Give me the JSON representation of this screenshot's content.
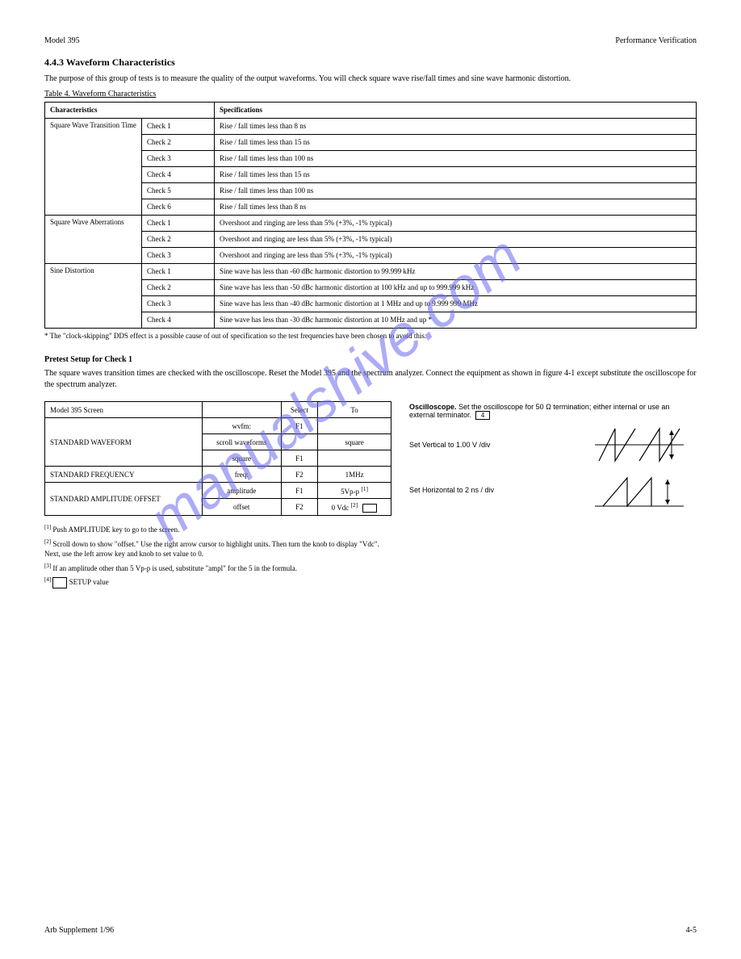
{
  "header": {
    "left": "Model 395",
    "right": "Performance Verification"
  },
  "section_title": "4.4.3 Waveform Characteristics",
  "intro_text": "The purpose of this group of tests is to measure the quality of the output waveforms. You will check square wave rise/fall times and sine wave harmonic distortion.",
  "table1": {
    "caption": "Table 4. Waveform Characteristics",
    "header": [
      "Characteristics",
      "",
      "Specifications"
    ],
    "groups": [
      {
        "label": "Square Wave Transition Time",
        "rows": [
          [
            "Check 1",
            "Rise / fall times less than 8 ns"
          ],
          [
            "Check 2",
            "Rise / fall times less than 15 ns"
          ],
          [
            "Check 3",
            "Rise / fall times less than 100 ns"
          ],
          [
            "Check 4",
            "Rise / fall times less than 15 ns"
          ],
          [
            "Check 5",
            "Rise / fall times less than 100 ns"
          ],
          [
            "Check 6",
            "Rise / fall times less than 8 ns"
          ]
        ]
      },
      {
        "label": "Square Wave Aberrations",
        "rows": [
          [
            "Check 1",
            "Overshoot and ringing are less than 5% (+3%, -1% typical)"
          ],
          [
            "Check 2",
            "Overshoot and ringing are less than 5% (+3%, -1% typical)"
          ],
          [
            "Check 3",
            "Overshoot and ringing are less than 5% (+3%, -1% typical)"
          ]
        ]
      },
      {
        "label": "Sine Distortion",
        "rows": [
          [
            "Check 1",
            "Sine wave has less than -60 dBc harmonic distortion to 99.999 kHz"
          ],
          [
            "Check 2",
            "Sine wave has less than -50 dBc harmonic distortion at 100 kHz and up to 999.999 kHz"
          ],
          [
            "Check 3",
            "Sine wave has less than -40 dBc harmonic distortion at 1 MHz and up to 9.999 999 MHz"
          ],
          [
            "Check 4",
            "Sine wave has less than -30 dBc harmonic distortion at 10 MHz and up *"
          ]
        ]
      }
    ],
    "footnote": "* The \"clock-skipping\" DDS effect is a possible cause of out of specification so the test frequencies have been chosen to avoid this."
  },
  "pretest_heading": "Pretest Setup for Check 1",
  "pretest_text": "The square waves transition times are checked with the oscilloscope. Reset the Model 395 and the spectrum analyzer. Connect the equipment as shown in figure 4-1 except substitute the oscilloscope for the spectrum analyzer.",
  "osc_heading": "Oscilloscope.",
  "osc_rows": [
    {
      "label": "Set Vertical to 1.00 V /div",
      "svg": "ramp1"
    },
    {
      "label": "Set Horizontal to 2 ns / div",
      "svg": "ramp2"
    }
  ],
  "table2": {
    "header_row1": [
      "Model 395 Screen",
      "",
      "Select",
      "To"
    ],
    "rows": [
      {
        "c0": "STANDARD WAVEFORM",
        "c0_rowspan": 3,
        "c1": "wvfm:",
        "c2": "F1",
        "c3": ""
      },
      {
        "c1": "scroll waveforms",
        "c2": "",
        "c3": "square"
      },
      {
        "c1": "square",
        "c2": "F1",
        "c3": ""
      },
      {
        "c0": "STANDARD FREQUENCY",
        "c1": "freq:",
        "c2": "F2",
        "c3": "1MHz"
      },
      {
        "c0": "STANDARD AMPLITUDE OFFSET",
        "c0_rowspan": 2,
        "c1": "amplitude",
        "c2": "F1",
        "c3": "5Vp-p [1]"
      },
      {
        "c1": "offset",
        "c2": "F2",
        "c3": "0 Vdc [2]"
      }
    ]
  },
  "offset_notes": [
    {
      "sup": "[1]",
      "text": "Push AMPLITUDE key to go to the screen."
    },
    {
      "sup": "[2]",
      "text": "Scroll down to show \"offset.\" Use the right arrow cursor to highlight units. Then turn the knob to display \"Vdc\". Next, use the left arrow key and knob to set value to 0."
    },
    {
      "sup": "[3]",
      "text": "If an amplitude other than 5 Vp-p is used, substitute \"ampl\" for the 5 in the formula."
    },
    {
      "sup": "[4]",
      "text": "[box] SETUP value"
    }
  ],
  "footer": {
    "left": "Arb Supplement 1/96",
    "right": "4-5"
  },
  "colors": {
    "watermark": "#6a6af0",
    "text": "#000000",
    "bg": "#ffffff",
    "border": "#000000"
  }
}
